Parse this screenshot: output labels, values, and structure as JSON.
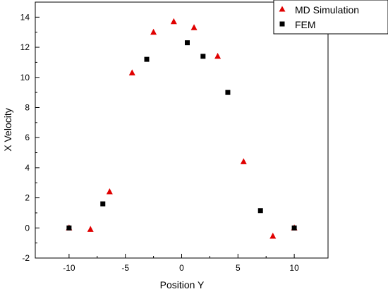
{
  "chart_data": {
    "type": "scatter",
    "title": "",
    "xlabel": "Position Y",
    "ylabel": "X Velocity",
    "xlim": [
      -13,
      13
    ],
    "ylim": [
      -2,
      15
    ],
    "xticks": [
      -10,
      -5,
      0,
      5,
      10
    ],
    "yticks": [
      -2,
      0,
      2,
      4,
      6,
      8,
      10,
      12,
      14
    ],
    "grid": false,
    "legend": "top-right",
    "series": [
      {
        "name": "MD Simulation",
        "marker": "triangle",
        "color": "#e00000",
        "x": [
          -10,
          -8.1,
          -6.4,
          -4.4,
          -2.5,
          -0.7,
          1.1,
          3.2,
          5.5,
          8.1,
          10
        ],
        "y": [
          0.0,
          -0.1,
          2.4,
          10.3,
          13.0,
          13.7,
          13.3,
          11.4,
          4.4,
          -0.55,
          0.0
        ]
      },
      {
        "name": "FEM",
        "marker": "square",
        "color": "#000000",
        "x": [
          -10,
          -7,
          -3.1,
          0.5,
          1.9,
          4.1,
          7,
          10
        ],
        "y": [
          0.0,
          1.6,
          11.2,
          12.3,
          11.4,
          9.0,
          1.15,
          0.0
        ]
      }
    ]
  }
}
